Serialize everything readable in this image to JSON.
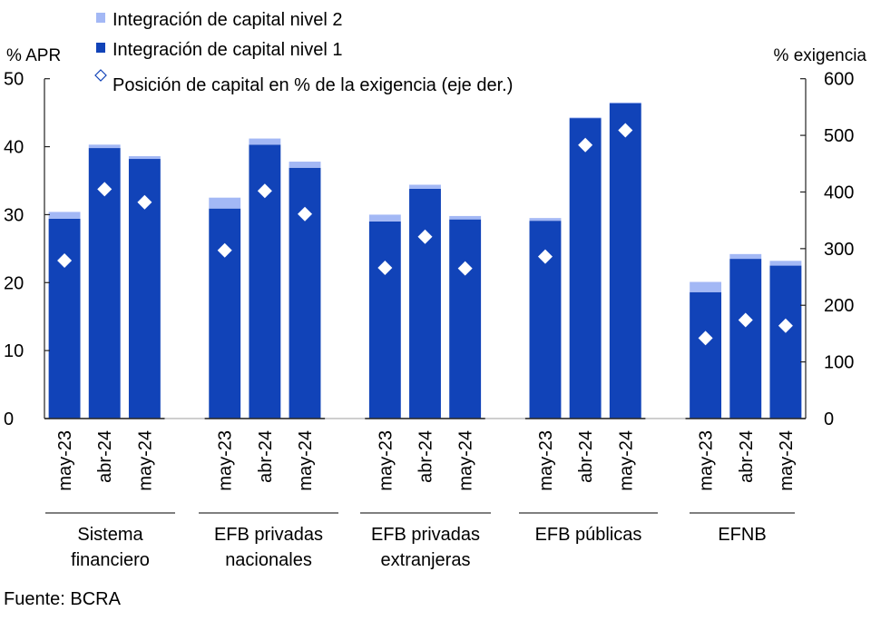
{
  "chart_data": {
    "type": "bar",
    "stacked": true,
    "title": "",
    "left_axis": {
      "label": "% APR",
      "ylim": [
        0,
        50
      ],
      "ticks": [
        0,
        10,
        20,
        30,
        40,
        50
      ]
    },
    "right_axis": {
      "label": "% exigencia",
      "ylim": [
        0,
        600
      ],
      "ticks": [
        0,
        100,
        200,
        300,
        400,
        500,
        600
      ]
    },
    "legend": {
      "placement": "top-left",
      "entries": [
        {
          "name": "Integración de capital nivel 2",
          "marker": "square",
          "color": "#A3B8F5"
        },
        {
          "name": "Integración de capital nivel 1",
          "marker": "square",
          "color": "#1143B8"
        },
        {
          "name": "Posición de capital en % de la exigencia (eje der.)",
          "marker": "diamond-outline",
          "color": "#1143B8"
        }
      ]
    },
    "groups": [
      {
        "name": "Sistema financiero",
        "lines": [
          "Sistema",
          "financiero"
        ]
      },
      {
        "name": "EFB privadas nacionales",
        "lines": [
          "EFB privadas",
          "nacionales"
        ]
      },
      {
        "name": "EFB privadas extranjeras",
        "lines": [
          "EFB privadas",
          "extranjeras"
        ]
      },
      {
        "name": "EFB públicas",
        "lines": [
          "EFB públicas"
        ]
      },
      {
        "name": "EFNB",
        "lines": [
          "EFNB"
        ]
      }
    ],
    "categories": [
      "may-23",
      "abr-24",
      "may-24"
    ],
    "series": [
      {
        "name": "Integración de capital nivel 1",
        "axis": "left",
        "color": "#1143B8",
        "values": [
          [
            29.4,
            39.8,
            38.2
          ],
          [
            30.9,
            40.3,
            36.9
          ],
          [
            29.0,
            33.8,
            29.3
          ],
          [
            29.1,
            44.2,
            46.4
          ],
          [
            18.6,
            23.5,
            22.5
          ]
        ]
      },
      {
        "name": "Integración de capital nivel 2",
        "axis": "left",
        "color": "#A3B8F5",
        "values": [
          [
            1.0,
            0.5,
            0.4
          ],
          [
            1.6,
            0.9,
            0.9
          ],
          [
            1.0,
            0.6,
            0.5
          ],
          [
            0.4,
            0.1,
            0.1
          ],
          [
            1.5,
            0.7,
            0.7
          ]
        ]
      },
      {
        "name": "Posición de capital en % de la exigencia (eje der.)",
        "axis": "right",
        "marker": "diamond",
        "color": "#FFFFFF",
        "values": [
          [
            279,
            405,
            382
          ],
          [
            297,
            402,
            361
          ],
          [
            266,
            321,
            265
          ],
          [
            286,
            483,
            509
          ],
          [
            142,
            174,
            164
          ]
        ]
      }
    ],
    "grid": false
  },
  "source": "Fuente: BCRA"
}
